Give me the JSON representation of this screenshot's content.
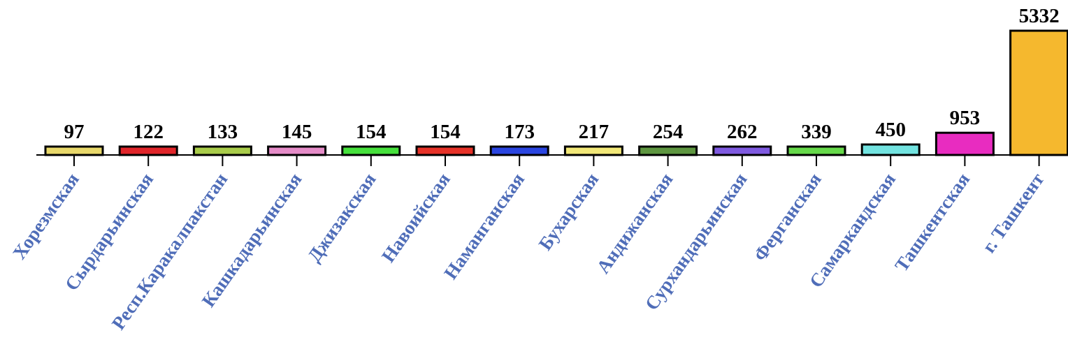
{
  "chart_data": {
    "type": "bar",
    "title": "",
    "xlabel": "",
    "ylabel": "",
    "ylim": [
      0,
      5332
    ],
    "grid": false,
    "legend": "none",
    "categories": [
      "Хорезмская",
      "Сырдарьинская",
      "Респ.Каракалпакстан",
      "Кашкадарьинская",
      "Джизакская",
      "Навоийская",
      "Наманганская",
      "Бухарская",
      "Андижанская",
      "Сурхандарьинская",
      "Ферганская",
      "Самаркандская",
      "Ташкентская",
      "г. Ташкент"
    ],
    "values": [
      97,
      122,
      133,
      145,
      154,
      154,
      173,
      217,
      254,
      262,
      339,
      450,
      953,
      5332
    ],
    "value_labels": [
      "97",
      "122",
      "133",
      "145",
      "154",
      "154",
      "173",
      "217",
      "254",
      "262",
      "339",
      "450",
      "953",
      "5332"
    ],
    "colors": [
      "#e8d86a",
      "#e0252a",
      "#a9cc4a",
      "#e58cc8",
      "#46e03c",
      "#e63228",
      "#2a45e0",
      "#f2e878",
      "#5e9640",
      "#7f5ae0",
      "#66d94a",
      "#72e3e0",
      "#e82cc0",
      "#f5b82e"
    ],
    "category_label_color": "#4f6db8"
  }
}
